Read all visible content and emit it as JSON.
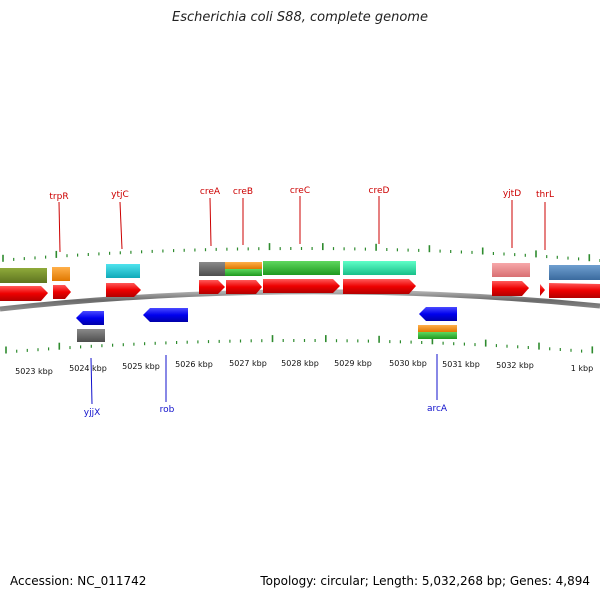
{
  "title": "Escherichia coli S88, complete genome",
  "accession_text": "Accession: NC_011742",
  "topology_text": "Topology: circular; Length: 5,032,268 bp; Genes: 4,894",
  "colors": {
    "backbone": "#808080",
    "tick": "#2e8b2e",
    "label_red": "#cc0000",
    "label_blue": "#1010cc"
  },
  "kbp_labels": [
    "5023 kbp",
    "5024 kbp",
    "5025 kbp",
    "5026 kbp",
    "5027 kbp",
    "5028 kbp",
    "5029 kbp",
    "5030 kbp",
    "5031 kbp",
    "5032 kbp",
    "1 kbp"
  ],
  "gene_labels_top": [
    "trpR",
    "ytjC",
    "creA",
    "creB",
    "creC",
    "creD",
    "yjtD",
    "thrL"
  ],
  "gene_labels_bottom": [
    "yjjX",
    "rob",
    "arcA"
  ]
}
